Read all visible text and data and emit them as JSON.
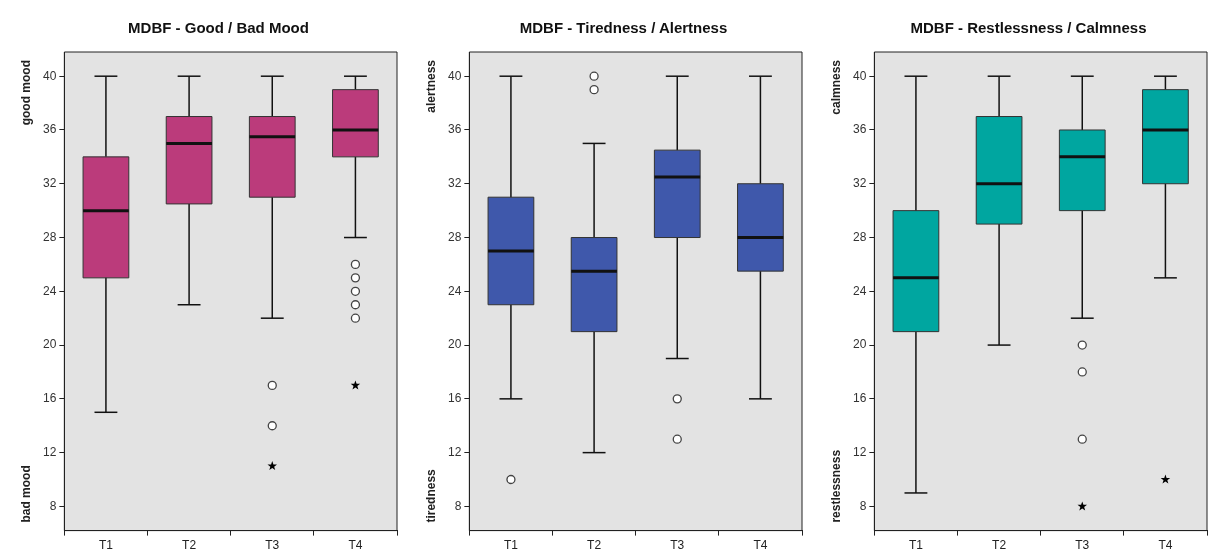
{
  "chart_data": [
    {
      "type": "box",
      "title": "MDBF - Good / Bad Mood",
      "ylabel": "good mood",
      "annotations": [
        "bad mood"
      ],
      "categories": [
        "T1",
        "T2",
        "T3",
        "T4"
      ],
      "ylim": [
        6.2,
        41.8
      ],
      "yticks": [
        8,
        12,
        16,
        20,
        24,
        28,
        32,
        36,
        40
      ],
      "grid": false,
      "legend": false,
      "series": [
        {
          "color": "#bb3b7b",
          "boxes": [
            {
              "low": 15,
              "q1": 25,
              "median": 30,
              "q3": 34,
              "high": 40
            },
            {
              "low": 23,
              "q1": 30.5,
              "median": 35,
              "q3": 37,
              "high": 40
            },
            {
              "low": 22,
              "q1": 31,
              "median": 35.5,
              "q3": 37,
              "high": 40,
              "outliers": [
                17,
                14
              ]
            },
            {
              "low": 28,
              "q1": 34,
              "median": 36,
              "q3": 39,
              "high": 40,
              "outliers": [
                26,
                25,
                24,
                23,
                22
              ]
            }
          ]
        },
        {
          "type": "scatter",
          "marker": "star",
          "color": "#000000",
          "x": [
            "T3",
            "T4"
          ],
          "values": [
            11,
            17
          ]
        }
      ]
    },
    {
      "type": "box",
      "title": "MDBF - Tiredness / Alertness",
      "ylabel": "alertness",
      "annotations": [
        "tiredness"
      ],
      "categories": [
        "T1",
        "T2",
        "T3",
        "T4"
      ],
      "ylim": [
        6.2,
        41.8
      ],
      "yticks": [
        8,
        12,
        16,
        20,
        24,
        28,
        32,
        36,
        40
      ],
      "grid": false,
      "legend": false,
      "series": [
        {
          "color": "#3f58ab",
          "boxes": [
            {
              "low": 16,
              "q1": 23,
              "median": 27,
              "q3": 31,
              "high": 40,
              "outliers": [
                10
              ]
            },
            {
              "low": 12,
              "q1": 21,
              "median": 25.5,
              "q3": 28,
              "high": 35,
              "outliers": [
                40,
                39
              ]
            },
            {
              "low": 19,
              "q1": 28,
              "median": 32.5,
              "q3": 34.5,
              "high": 40,
              "outliers": [
                16,
                13
              ]
            },
            {
              "low": 16,
              "q1": 25.5,
              "median": 28,
              "q3": 32,
              "high": 40
            }
          ]
        }
      ]
    },
    {
      "type": "box",
      "title": "MDBF - Restlessness / Calmness",
      "ylabel": "calmness",
      "annotations": [
        "restlessness"
      ],
      "categories": [
        "T1",
        "T2",
        "T3",
        "T4"
      ],
      "ylim": [
        6.2,
        41.8
      ],
      "yticks": [
        8,
        12,
        16,
        20,
        24,
        28,
        32,
        36,
        40
      ],
      "grid": false,
      "legend": false,
      "series": [
        {
          "color": "#00a6a0",
          "boxes": [
            {
              "low": 9,
              "q1": 21,
              "median": 25,
              "q3": 30,
              "high": 40
            },
            {
              "low": 20,
              "q1": 29,
              "median": 32,
              "q3": 37,
              "high": 40
            },
            {
              "low": 22,
              "q1": 30,
              "median": 34,
              "q3": 36,
              "high": 40,
              "outliers": [
                20,
                18,
                13
              ]
            },
            {
              "low": 25,
              "q1": 32,
              "median": 36,
              "q3": 39,
              "high": 40
            }
          ]
        },
        {
          "type": "scatter",
          "marker": "star",
          "color": "#000000",
          "x": [
            "T3",
            "T4"
          ],
          "values": [
            8,
            10
          ]
        }
      ]
    }
  ]
}
